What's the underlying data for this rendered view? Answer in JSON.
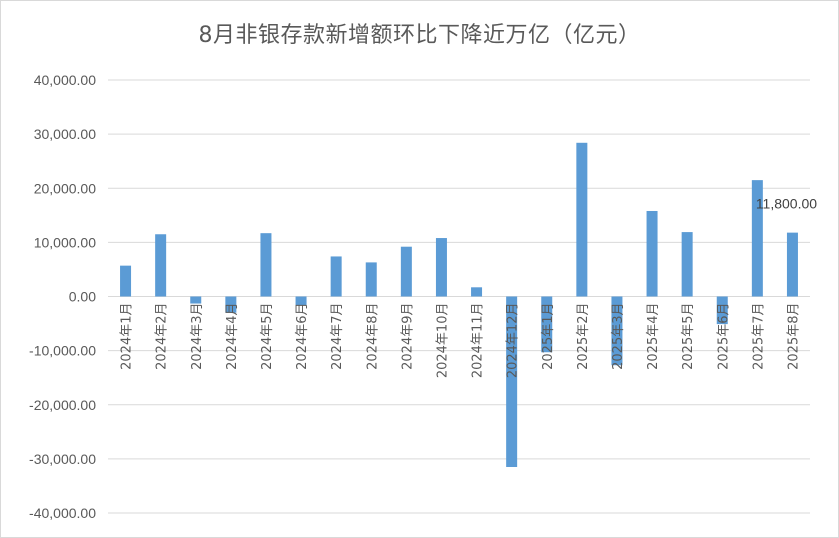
{
  "chart_data": {
    "type": "bar",
    "title": "8月非银存款新增额环比下降近万亿（亿元）",
    "xlabel": "",
    "ylabel": "",
    "ylim": [
      -40000,
      40000
    ],
    "ytick_step": 10000,
    "ytick_labels": [
      "40,000.00",
      "30,000.00",
      "20,000.00",
      "10,000.00",
      "0.00",
      "-10,000.00",
      "-20,000.00",
      "-30,000.00",
      "-40,000.00"
    ],
    "grid": true,
    "legend": "none",
    "bar_color": "#5b9bd5",
    "categories": [
      "2024年1月",
      "2024年2月",
      "2024年3月",
      "2024年4月",
      "2024年5月",
      "2024年6月",
      "2024年7月",
      "2024年8月",
      "2024年9月",
      "2024年10月",
      "2024年11月",
      "2024年12月",
      "2025年1月",
      "2025年2月",
      "2025年3月",
      "2025年4月",
      "2025年5月",
      "2025年6月",
      "2025年7月",
      "2025年8月"
    ],
    "values": [
      5700,
      11500,
      -1300,
      -3000,
      11700,
      -1600,
      7400,
      6300,
      9200,
      10800,
      1700,
      -31500,
      -10300,
      28400,
      -12700,
      15800,
      11900,
      -5100,
      21500,
      11800
    ],
    "data_labels": [
      {
        "index": 19,
        "text": "11,800.00"
      }
    ]
  }
}
